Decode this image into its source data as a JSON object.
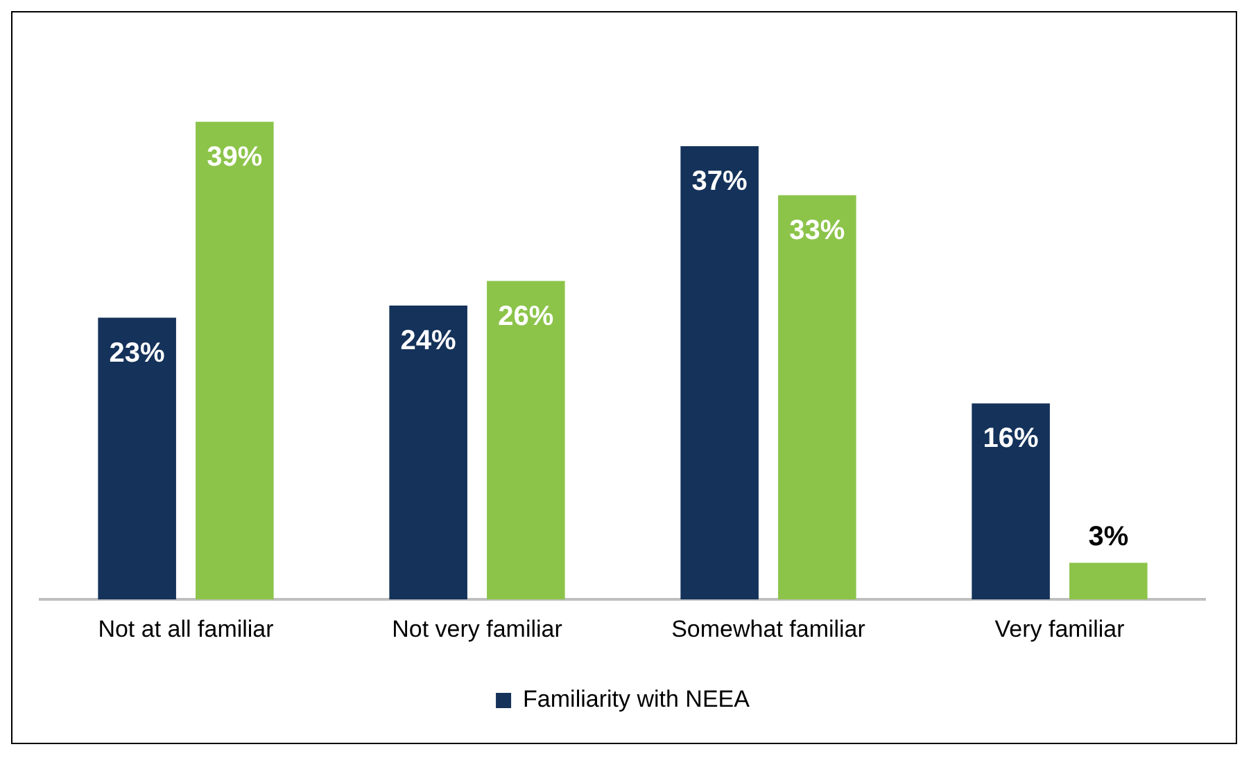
{
  "chart_data": {
    "type": "bar",
    "categories": [
      "Not at all familiar",
      "Not very familiar",
      "Somewhat familiar",
      "Very familiar"
    ],
    "series": [
      {
        "name": "Familiarity with NEEA",
        "color": "#14325a",
        "values": [
          23,
          24,
          37,
          16
        ],
        "value_labels": [
          "23%",
          "24%",
          "37%",
          "16%"
        ]
      },
      {
        "color": "#8cc44a",
        "values": [
          39,
          26,
          33,
          3
        ],
        "value_labels": [
          "39%",
          "26%",
          "33%",
          "3%"
        ]
      }
    ],
    "grid": false,
    "legend": "bottom"
  }
}
